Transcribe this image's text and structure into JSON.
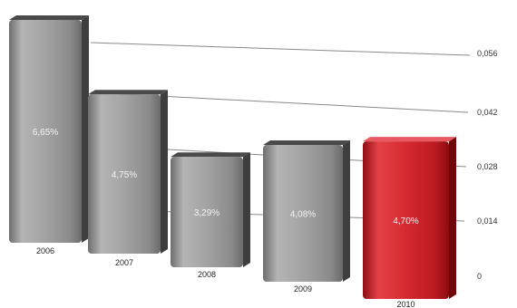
{
  "chart_data": {
    "type": "bar",
    "title": "",
    "xlabel": "",
    "ylabel": "",
    "categories": [
      "2006",
      "2007",
      "2008",
      "2009",
      "2010"
    ],
    "values": [
      0.0665,
      0.0475,
      0.0329,
      0.0408,
      0.047
    ],
    "data_labels": [
      "6,65%",
      "4,75%",
      "3,29%",
      "4,08%",
      "4,70%"
    ],
    "y_ticks": [
      0,
      0.014,
      0.028,
      0.042,
      0.056
    ],
    "y_tick_labels": [
      "0",
      "0,014",
      "0,028",
      "0,042",
      "0,056"
    ],
    "ylim": [
      0,
      0.07
    ],
    "grid": true,
    "y_axis_position": "right",
    "style": "3d-perspective",
    "colors": {
      "default_bar": "#9a9a9a",
      "highlight_bar": "#d0242b",
      "gridline": "#8a8a8a"
    },
    "highlight_index": 4
  }
}
